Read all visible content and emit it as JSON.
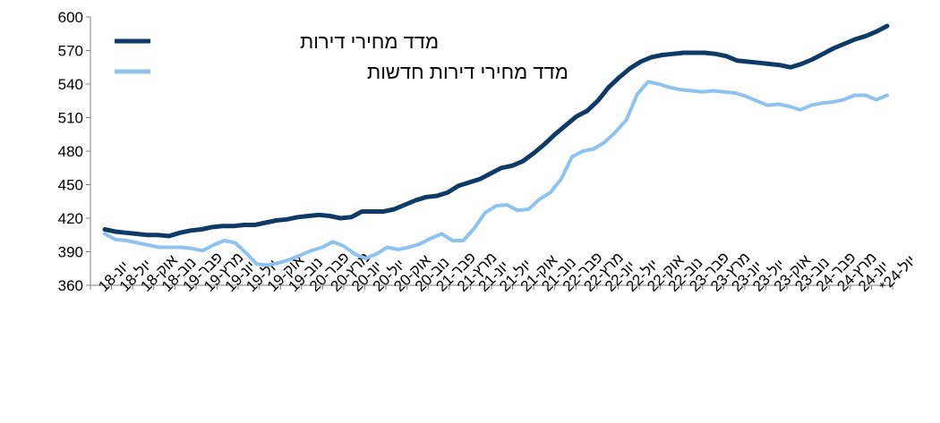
{
  "chart_data": {
    "type": "line",
    "ylim": [
      360,
      600
    ],
    "yticks": [
      360,
      390,
      420,
      450,
      480,
      510,
      540,
      570,
      600
    ],
    "grid": false,
    "legend_position": "top-left",
    "x_tick_labels": [
      "יונ-18",
      "יול-18",
      "אוק-18",
      "נוב-18",
      "פבר-19",
      "מרץ-19",
      "יונ-19",
      "יול-19",
      "אוק-19",
      "נוב-19",
      "פבר-20",
      "מרץ-20",
      "יונ-20",
      "יול-20",
      "אוק-20",
      "נוב-20",
      "פבר-21",
      "מרץ-21",
      "יונ-21",
      "יול-21",
      "אוק-21",
      "נוב-21",
      "פבר-22",
      "מרץ-22",
      "יונ-22",
      "יול-22",
      "אוק-22",
      "נוב-22",
      "פבר-23",
      "מרץ-23",
      "יונ-23",
      "יול-23",
      "אוק-23",
      "נוב-23",
      "פבר-24",
      "מרץ-24",
      "יונ-24",
      "יול-24*"
    ],
    "x_tick_display": [
      "יונ-18",
      "אוק-18",
      "פבר-19",
      "יונ-19",
      "אוק-19",
      "פבר-20",
      "יונ-20",
      "אוק-20",
      "פבר-21",
      "יונ-21",
      "אוק-21",
      "פבר-22",
      "יונ-22",
      "אוק-22",
      "פבר-23",
      "יונ-23",
      "אוק-23",
      "פבר-24",
      "יונ-24"
    ],
    "x_tick_second": [
      "יול-18",
      "נוב-18",
      "מרץ-19",
      "יול-19",
      "נוב-19",
      "מרץ-20",
      "יול-20",
      "נוב-20",
      "מרץ-21",
      "יול-21",
      "נוב-21",
      "מרץ-22",
      "יול-22",
      "נוב-22",
      "מרץ-23",
      "יול-23",
      "נוב-23",
      "מרץ-24",
      "יול-24*"
    ],
    "series": [
      {
        "name": "מדד מחירי דירות",
        "color": "#0d3a66",
        "values": [
          410,
          408,
          407,
          406,
          405,
          405,
          404,
          407,
          409,
          410,
          412,
          413,
          413,
          414,
          414,
          416,
          418,
          419,
          421,
          422,
          423,
          422,
          420,
          421,
          426,
          426,
          426,
          428,
          432,
          436,
          439,
          440,
          443,
          449,
          452,
          455,
          460,
          465,
          467,
          471,
          478,
          486,
          495,
          503,
          511,
          516,
          525,
          537,
          546,
          554,
          560,
          564,
          566,
          567,
          568,
          568,
          568,
          567,
          565,
          561,
          560,
          559,
          558,
          557,
          555,
          558,
          562,
          567,
          572,
          576,
          580,
          583,
          587,
          592
        ]
      },
      {
        "name": "מדד מחירי דירות חדשות",
        "color": "#8fc3ef",
        "values": [
          406,
          401,
          400,
          398,
          396,
          394,
          394,
          394,
          393,
          391,
          396,
          400,
          398,
          389,
          379,
          378,
          380,
          383,
          387,
          391,
          394,
          399,
          395,
          388,
          384,
          388,
          394,
          392,
          394,
          397,
          402,
          406,
          400,
          400,
          411,
          425,
          431,
          432,
          427,
          428,
          437,
          443,
          455,
          475,
          480,
          482,
          488,
          497,
          508,
          531,
          542,
          540,
          537,
          535,
          534,
          533,
          534,
          533,
          532,
          529,
          525,
          521,
          522,
          520,
          517,
          521,
          523,
          524,
          526,
          530,
          530,
          526,
          530
        ]
      }
    ]
  }
}
